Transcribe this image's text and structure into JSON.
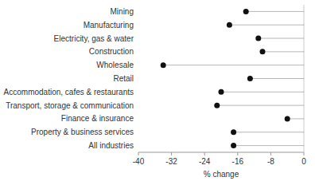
{
  "chart_data": {
    "type": "dot",
    "categories": [
      "All industries",
      "Property & business services",
      "Finance & insurance",
      "Transport, storage & communication",
      "Accommodation, cafes & restaurants",
      "Retail",
      "Wholesale",
      "Construction",
      "Electricity, gas & water",
      "Manufacturing",
      "Mining"
    ],
    "values": [
      -17,
      -17,
      -4,
      -21,
      -20,
      -13,
      -34,
      -10,
      -11,
      -18,
      -14
    ],
    "xlim": [
      -40,
      0
    ],
    "xticks": [
      -40,
      -32,
      -24,
      -16,
      -8,
      0
    ],
    "xlabel": "% change",
    "color": "#111111"
  }
}
